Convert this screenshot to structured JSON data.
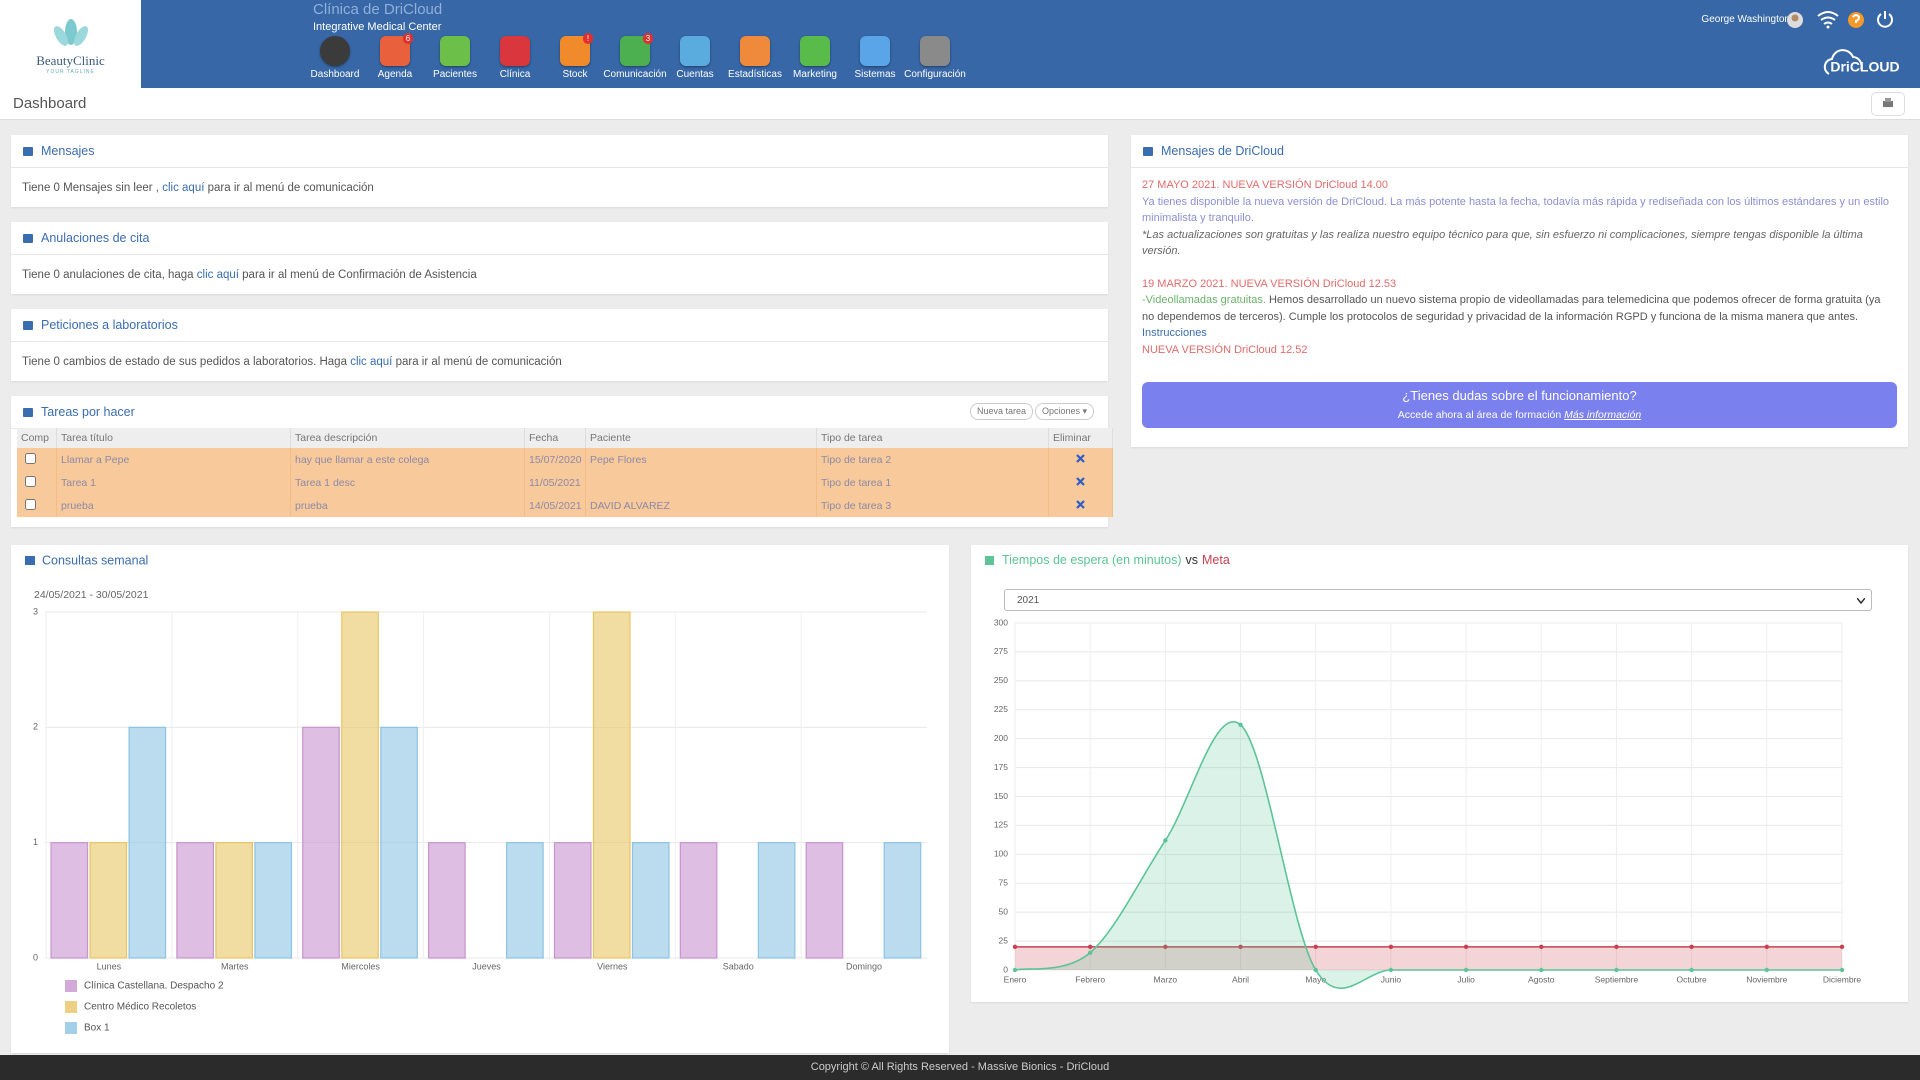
{
  "header": {
    "logo": "BeautyClinic",
    "tagline": "YOUR TAGLINE",
    "clinic": "Clínica de DriCloud",
    "center": "Integrative Medical Center",
    "user": "George Washington",
    "brand": "DriCLOUD"
  },
  "nav": [
    {
      "label": "Dashboard",
      "color": "#3b3b3b"
    },
    {
      "label": "Agenda",
      "color": "#e8603c",
      "badge": 6
    },
    {
      "label": "Pacientes",
      "color": "#6cc04a"
    },
    {
      "label": "Clínica",
      "color": "#d9363e"
    },
    {
      "label": "Stock",
      "color": "#f08a2a",
      "badge": "!"
    },
    {
      "label": "Comunicación",
      "color": "#4cb050",
      "badge": 3
    },
    {
      "label": "Cuentas",
      "color": "#5aacdf"
    },
    {
      "label": "Estadísticas",
      "color": "#ef8a3c"
    },
    {
      "label": "Marketing",
      "color": "#58bb4a"
    },
    {
      "label": "Sistemas",
      "color": "#5aa5e8"
    },
    {
      "label": "Configuración",
      "color": "#8a8a8a"
    }
  ],
  "page_title": "Dashboard",
  "panels": [
    {
      "title": "Mensajes",
      "text_before": "Tiene 0 Mensajes sin leer ,",
      "link": "clic aquí",
      "text_after": "para ir al menú de comunicación"
    },
    {
      "title": "Anulaciones de cita",
      "text_before": "Tiene 0 anulaciones de cita, haga",
      "link": "clic aquí",
      "text_after": "para ir al menú de Confirmación de Asistencia"
    },
    {
      "title": "Peticiones a laboratorios",
      "text_before": "Tiene 0 cambios de estado de sus pedidos a laboratorios. Haga",
      "link": "clic aquí",
      "text_after": "para ir al menú de comunicación"
    }
  ],
  "tasks": {
    "title": "Tareas por hacer",
    "buttons": [
      "Nueva tarea",
      "Opciones ▾"
    ],
    "columns": [
      "Comp",
      "Tarea título",
      "Tarea descripción",
      "Fecha",
      "Paciente",
      "Tipo de tarea",
      "Eliminar"
    ],
    "rows": [
      [
        "Llamar a Pepe",
        "hay que llamar a este colega",
        "15/07/2020",
        "Pepe Flores",
        "Tipo de tarea 2"
      ],
      [
        "Tarea 1",
        "Tarea 1 desc",
        "11/05/2021",
        null,
        "Tipo de tarea 1"
      ],
      [
        "prueba",
        "prueba",
        "14/05/2021",
        "DAVID ALVAREZ",
        "Tipo de tarea 3"
      ]
    ]
  },
  "news": {
    "title": "Mensajes de DriCloud",
    "items": [
      {
        "heading": "27 MAYO 2021. NUEVA VERSIÓN DriCloud 14.00",
        "text": "Ya tienes disponible la nueva versión de DriCloud. La más potente hasta la fecha, todavía más rápida y rediseñada con los últimos estándares y un estilo minimalista y tranquilo.",
        "note": "*Las actualizaciones son gratuitas y las realiza nuestro equipo técnico para que, sin esfuerzo ni complicaciones, siempre tengas disponible la última versión."
      },
      {
        "heading": "19 MARZO 2021. NUEVA VERSIÓN DriCloud 12.53",
        "lead": "-Videollamadas gratuitas.",
        "text": "Hemos desarrollado un nuevo sistema propio de videollamadas para telemedicina que podemos ofrecer de forma gratuita (ya no dependemos de terceros). Cumple los protocolos de seguridad y privacidad de la información RGPD y funciona de la misma manera que antes.",
        "link": "Instrucciones"
      },
      {
        "heading": "NUEVA VERSIÓN DriCloud 12.52"
      }
    ]
  },
  "help": {
    "title": "¿Tienes dudas sobre el funcionamiento?",
    "text": "Accede ahora al área de formación",
    "link": "Más información"
  },
  "footer": "Copyright © All Rights Reserved - Massive Bionics - DriCloud",
  "chart_data": [
    {
      "type": "bar",
      "title": "Consultas semanal",
      "subtitle": "24/05/2021 - 30/05/2021",
      "categories": [
        "Lunes",
        "Martes",
        "Miercoles",
        "Jueves",
        "Viernes",
        "Sabado",
        "Domingo"
      ],
      "series": [
        {
          "name": "Clínica Castellana. Despacho 2",
          "color": "#c893cf",
          "values": [
            1,
            1,
            2,
            1,
            1,
            1,
            1
          ]
        },
        {
          "name": "Centro Médico Recoletos",
          "color": "#e8c463",
          "values": [
            1,
            1,
            3,
            0,
            3,
            0,
            0
          ]
        },
        {
          "name": "Box 1",
          "color": "#8dc3e3",
          "values": [
            2,
            1,
            2,
            1,
            1,
            1,
            1
          ]
        }
      ],
      "ylim": [
        0,
        3
      ],
      "yticks": [
        0,
        1,
        2,
        3
      ],
      "grid": true
    },
    {
      "type": "line",
      "title_connector": "vs",
      "select": "2021",
      "categories": [
        "Enero",
        "Febrero",
        "Marzo",
        "Abril",
        "Mayo",
        "Junio",
        "Julio",
        "Agosto",
        "Septiembre",
        "Octubre",
        "Noviembre",
        "Diciembre"
      ],
      "series": [
        {
          "name": "Tiempos de espera (en minutos)",
          "color": "#5cc497",
          "values": [
            0,
            15,
            112,
            212,
            0,
            0,
            0,
            0,
            0,
            0,
            0,
            0
          ]
        },
        {
          "name": "Meta",
          "color": "#c8404f",
          "values": [
            20,
            20,
            20,
            20,
            20,
            20,
            20,
            20,
            20,
            20,
            20,
            20
          ]
        }
      ],
      "ylim": [
        0,
        300
      ],
      "yticks": [
        0,
        25,
        50,
        75,
        100,
        125,
        150,
        175,
        200,
        225,
        250,
        275,
        300
      ],
      "grid": true
    }
  ]
}
